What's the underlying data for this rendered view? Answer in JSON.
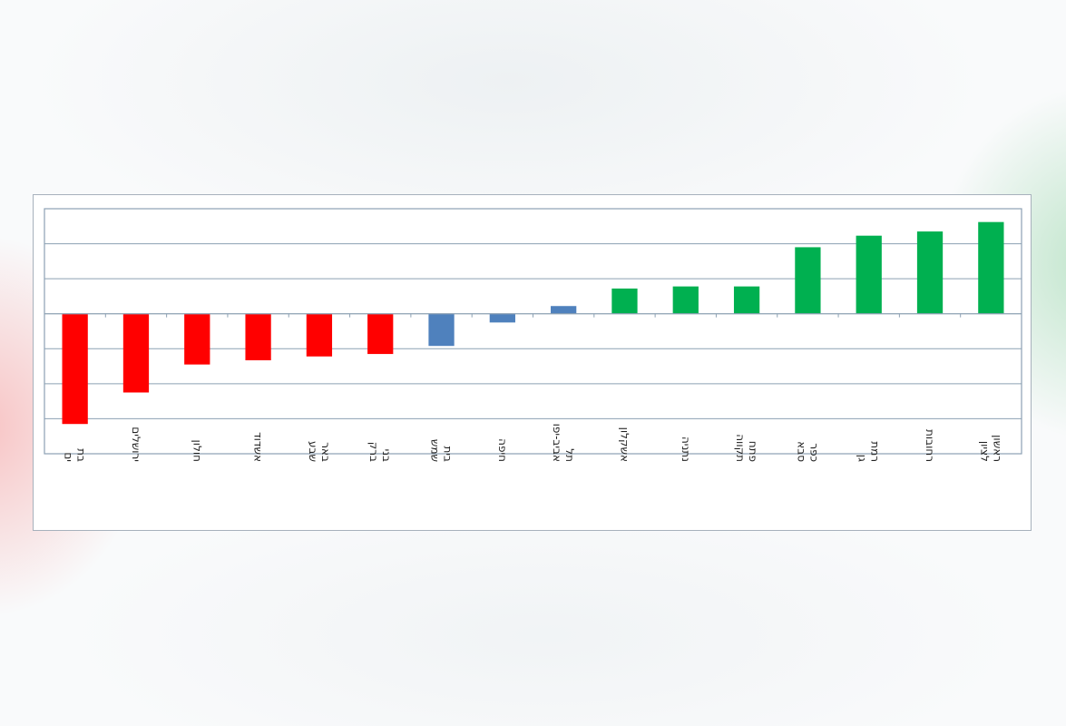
{
  "chart_data": {
    "type": "bar",
    "title": "",
    "xlabel": "",
    "ylabel": "",
    "categories": [
      "בת ים",
      "ירושלים",
      "חולון",
      "אשדוד",
      "באר שבע",
      "בני ברק",
      "בית שמש",
      "חיפה",
      "תל אביב-יפו",
      "אשקלון",
      "נתניה",
      "פתח תקווה",
      "כפר סבא",
      "רמת גן",
      "רחובות",
      "ראשון לציון"
    ],
    "values": [
      -3.15,
      -2.25,
      -1.45,
      -1.33,
      -1.22,
      -1.15,
      -0.92,
      -0.25,
      0.22,
      0.72,
      0.78,
      0.78,
      1.9,
      2.23,
      2.35,
      2.62
    ],
    "colors": [
      "#ff0000",
      "#ff0000",
      "#ff0000",
      "#ff0000",
      "#ff0000",
      "#ff0000",
      "#4f81bd",
      "#4f81bd",
      "#4f81bd",
      "#00b050",
      "#00b050",
      "#00b050",
      "#00b050",
      "#00b050",
      "#00b050",
      "#00b050"
    ],
    "ylim": [
      -4,
      3
    ],
    "grid": true,
    "legend": "none",
    "tick_labels_shown": false
  }
}
